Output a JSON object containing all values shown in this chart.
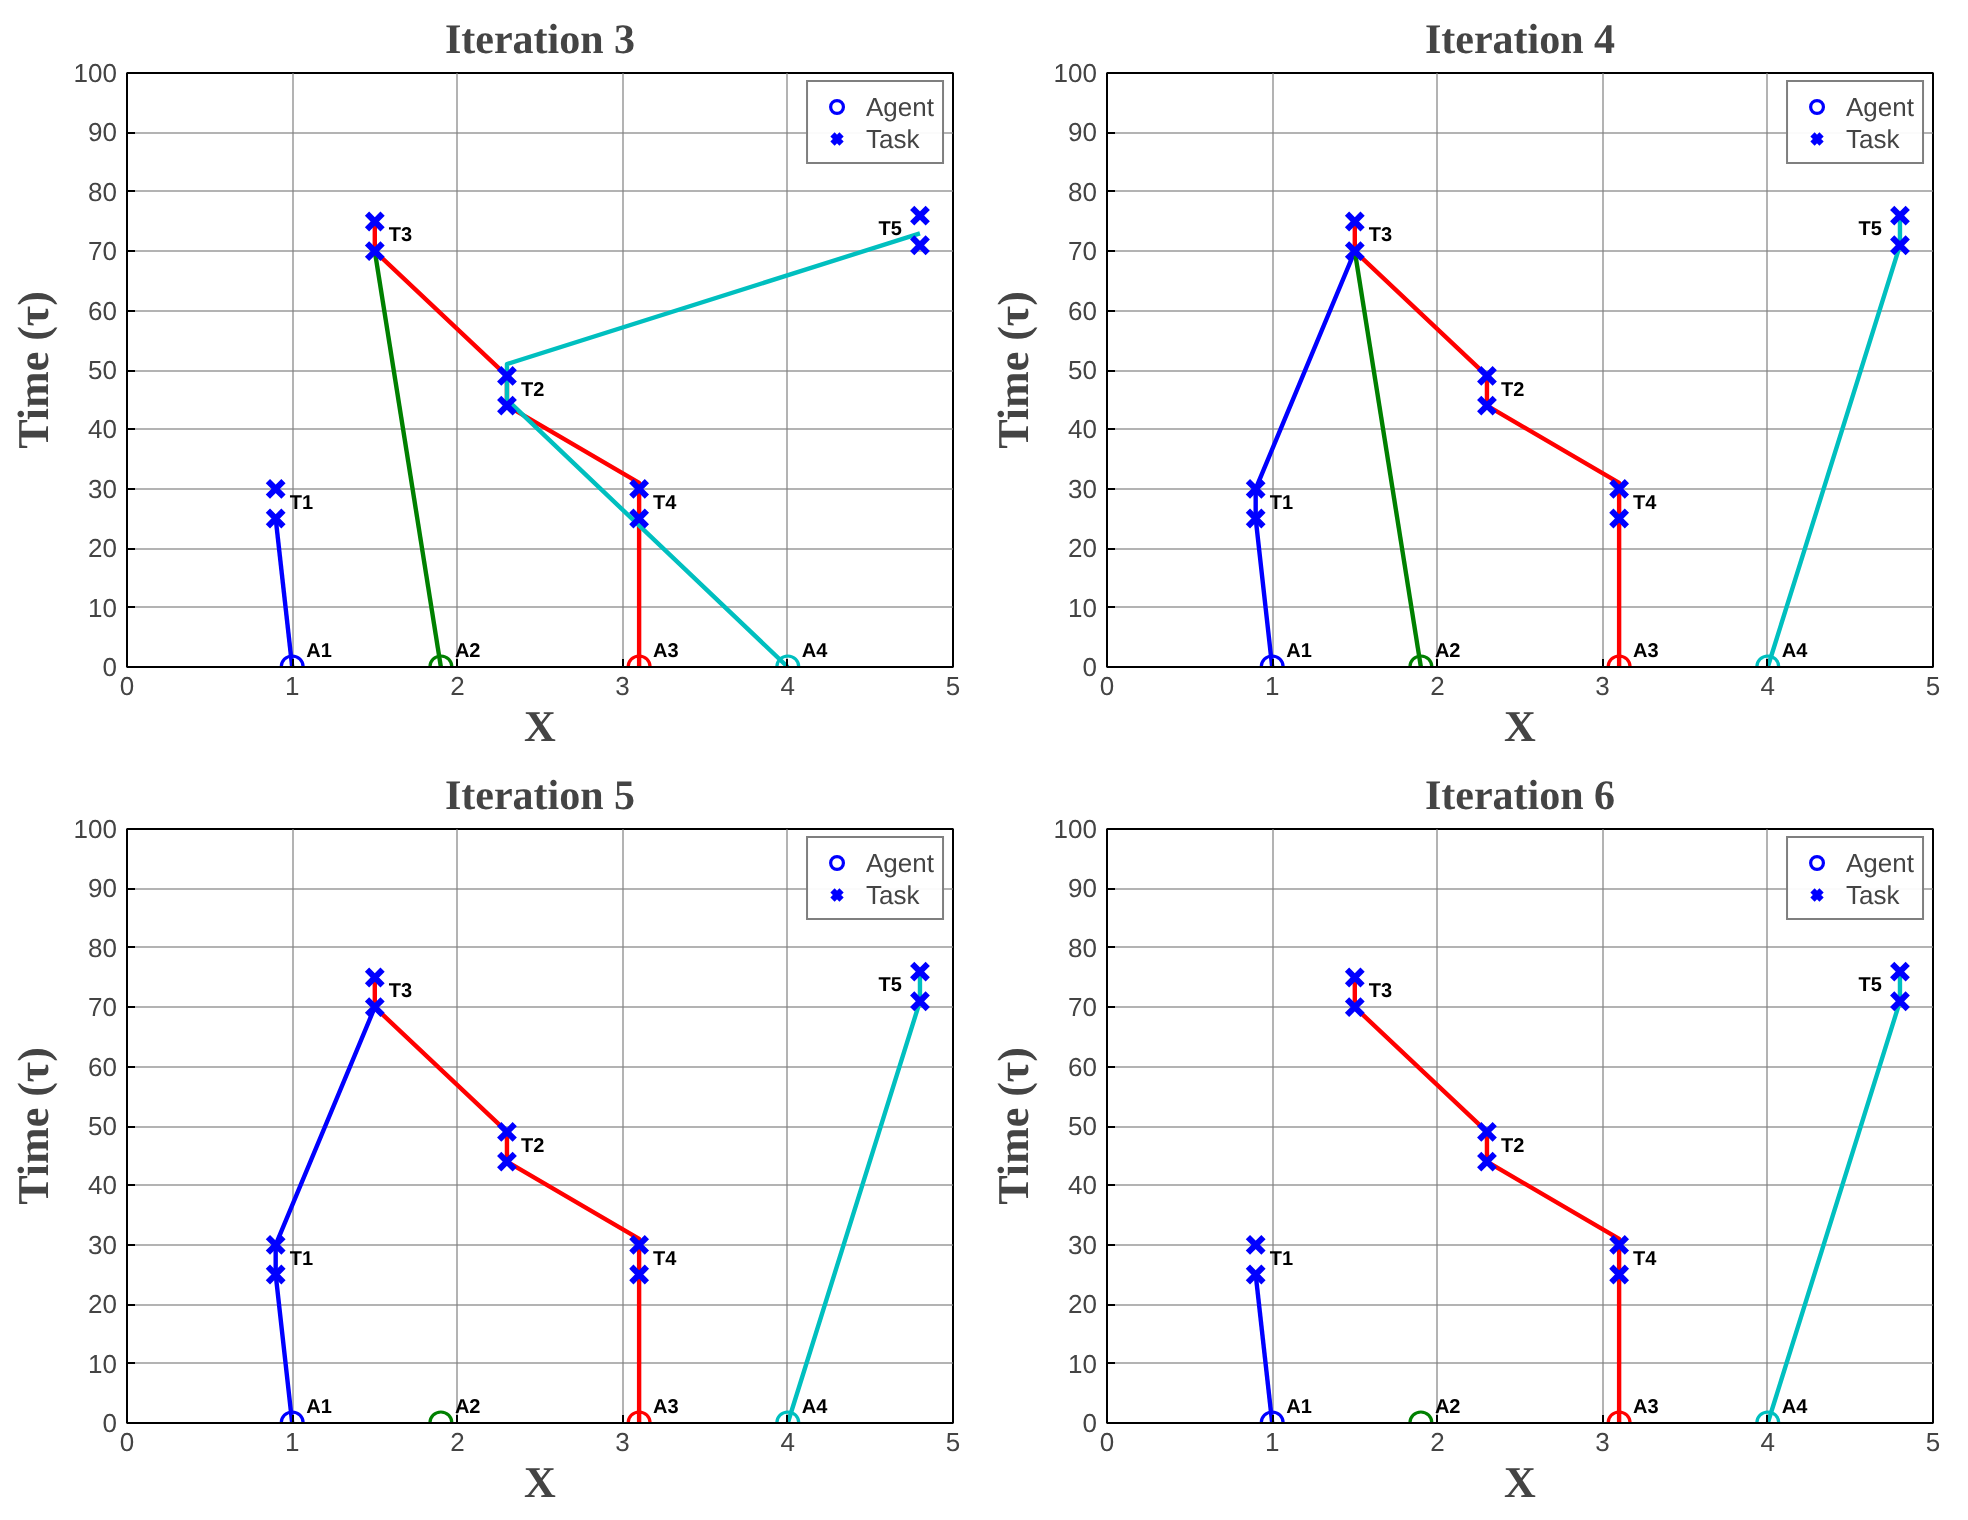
{
  "chart_data": [
    {
      "type": "line",
      "title": "Iteration 3",
      "xlabel": "X",
      "ylabel": "Time (τ)",
      "xlim": [
        0,
        5
      ],
      "ylim": [
        0,
        100
      ],
      "xticks": [
        0,
        1,
        2,
        3,
        4,
        5
      ],
      "yticks": [
        0,
        10,
        20,
        30,
        40,
        50,
        60,
        70,
        80,
        90,
        100
      ],
      "grid": true,
      "legend": "top right",
      "series": [
        {
          "color": "#0000ff",
          "x": [
            1,
            0.9
          ],
          "values": [
            0,
            25
          ]
        },
        {
          "color": "#008000",
          "x": [
            1.9,
            1.5
          ],
          "values": [
            0,
            70
          ]
        },
        {
          "color": "#ff0000",
          "x": [
            3.1,
            3.1,
            3.1,
            2.3,
            2.3,
            1.5,
            1.5
          ],
          "values": [
            0,
            25,
            31,
            44,
            49,
            70,
            75
          ]
        },
        {
          "color": "#00bfbf",
          "x": [
            4,
            2.3,
            2.3,
            4.8
          ],
          "values": [
            0,
            45,
            51,
            73
          ]
        },
        {
          "type": "scatter",
          "name": "Agent",
          "marker": "circle",
          "colors": [
            "#0000ff",
            "#008000",
            "#ff0000",
            "#00bfbf"
          ],
          "x": [
            1,
            1.9,
            3.1,
            4
          ],
          "values": [
            0,
            0,
            0,
            0
          ]
        },
        {
          "type": "scatter",
          "name": "Task",
          "marker": "cross",
          "color": "#0000ff",
          "x": [
            0.9,
            0.9,
            2.3,
            2.3,
            1.5,
            1.5,
            3.1,
            3.1,
            4.8,
            4.8
          ],
          "values": [
            25,
            30,
            44,
            49,
            70,
            75,
            25,
            30,
            71,
            76
          ]
        }
      ],
      "annotations": [
        {
          "text": "A1",
          "x": 1,
          "y": 0
        },
        {
          "text": "A2",
          "x": 1.9,
          "y": 0
        },
        {
          "text": "A3",
          "x": 3.1,
          "y": 0
        },
        {
          "text": "A4",
          "x": 4,
          "y": 0
        },
        {
          "text": "T1",
          "x": 0.9,
          "y": 25
        },
        {
          "text": "T2",
          "x": 2.3,
          "y": 44
        },
        {
          "text": "T3",
          "x": 1.5,
          "y": 70
        },
        {
          "text": "T4",
          "x": 3.1,
          "y": 25
        },
        {
          "text": "T5",
          "x": 4.8,
          "y": 71
        }
      ]
    },
    {
      "type": "line",
      "title": "Iteration 4",
      "xlabel": "X",
      "ylabel": "Time (τ)",
      "xlim": [
        0,
        5
      ],
      "ylim": [
        0,
        100
      ],
      "xticks": [
        0,
        1,
        2,
        3,
        4,
        5
      ],
      "yticks": [
        0,
        10,
        20,
        30,
        40,
        50,
        60,
        70,
        80,
        90,
        100
      ],
      "grid": true,
      "legend": "top right",
      "series": [
        {
          "color": "#0000ff",
          "x": [
            1,
            0.9,
            0.9,
            1.5
          ],
          "values": [
            0,
            25,
            30,
            70
          ]
        },
        {
          "color": "#008000",
          "x": [
            1.9,
            1.5
          ],
          "values": [
            0,
            70
          ]
        },
        {
          "color": "#ff0000",
          "x": [
            3.1,
            3.1,
            3.1,
            2.3,
            2.3,
            1.5,
            1.5
          ],
          "values": [
            0,
            25,
            31,
            44,
            49,
            70,
            75
          ]
        },
        {
          "color": "#00bfbf",
          "x": [
            4,
            4.8,
            4.8
          ],
          "values": [
            0,
            71,
            76
          ]
        },
        {
          "type": "scatter",
          "name": "Agent",
          "marker": "circle",
          "colors": [
            "#0000ff",
            "#008000",
            "#ff0000",
            "#00bfbf"
          ],
          "x": [
            1,
            1.9,
            3.1,
            4
          ],
          "values": [
            0,
            0,
            0,
            0
          ]
        },
        {
          "type": "scatter",
          "name": "Task",
          "marker": "cross",
          "color": "#0000ff",
          "x": [
            0.9,
            0.9,
            2.3,
            2.3,
            1.5,
            1.5,
            3.1,
            3.1,
            4.8,
            4.8
          ],
          "values": [
            25,
            30,
            44,
            49,
            70,
            75,
            25,
            30,
            71,
            76
          ]
        }
      ],
      "annotations": [
        {
          "text": "A1",
          "x": 1,
          "y": 0
        },
        {
          "text": "A2",
          "x": 1.9,
          "y": 0
        },
        {
          "text": "A3",
          "x": 3.1,
          "y": 0
        },
        {
          "text": "A4",
          "x": 4,
          "y": 0
        },
        {
          "text": "T1",
          "x": 0.9,
          "y": 25
        },
        {
          "text": "T2",
          "x": 2.3,
          "y": 44
        },
        {
          "text": "T3",
          "x": 1.5,
          "y": 70
        },
        {
          "text": "T4",
          "x": 3.1,
          "y": 25
        },
        {
          "text": "T5",
          "x": 4.8,
          "y": 71
        }
      ]
    },
    {
      "type": "line",
      "title": "Iteration 5",
      "xlabel": "X",
      "ylabel": "Time (τ)",
      "xlim": [
        0,
        5
      ],
      "ylim": [
        0,
        100
      ],
      "xticks": [
        0,
        1,
        2,
        3,
        4,
        5
      ],
      "yticks": [
        0,
        10,
        20,
        30,
        40,
        50,
        60,
        70,
        80,
        90,
        100
      ],
      "grid": true,
      "legend": "top right",
      "series": [
        {
          "color": "#0000ff",
          "x": [
            1,
            0.9,
            0.9,
            1.5
          ],
          "values": [
            0,
            25,
            30,
            70
          ]
        },
        {
          "color": "#ff0000",
          "x": [
            3.1,
            3.1,
            3.1,
            2.3,
            2.3,
            1.5,
            1.5
          ],
          "values": [
            0,
            25,
            31,
            44,
            49,
            70,
            75
          ]
        },
        {
          "color": "#00bfbf",
          "x": [
            4,
            4.8,
            4.8
          ],
          "values": [
            0,
            71,
            76
          ]
        },
        {
          "type": "scatter",
          "name": "Agent",
          "marker": "circle",
          "colors": [
            "#0000ff",
            "#008000",
            "#ff0000",
            "#00bfbf"
          ],
          "x": [
            1,
            1.9,
            3.1,
            4
          ],
          "values": [
            0,
            0,
            0,
            0
          ]
        },
        {
          "type": "scatter",
          "name": "Task",
          "marker": "cross",
          "color": "#0000ff",
          "x": [
            0.9,
            0.9,
            2.3,
            2.3,
            1.5,
            1.5,
            3.1,
            3.1,
            4.8,
            4.8
          ],
          "values": [
            25,
            30,
            44,
            49,
            70,
            75,
            25,
            30,
            71,
            76
          ]
        }
      ],
      "annotations": [
        {
          "text": "A1",
          "x": 1,
          "y": 0
        },
        {
          "text": "A2",
          "x": 1.9,
          "y": 0
        },
        {
          "text": "A3",
          "x": 3.1,
          "y": 0
        },
        {
          "text": "A4",
          "x": 4,
          "y": 0
        },
        {
          "text": "T1",
          "x": 0.9,
          "y": 25
        },
        {
          "text": "T2",
          "x": 2.3,
          "y": 44
        },
        {
          "text": "T3",
          "x": 1.5,
          "y": 70
        },
        {
          "text": "T4",
          "x": 3.1,
          "y": 25
        },
        {
          "text": "T5",
          "x": 4.8,
          "y": 71
        }
      ]
    },
    {
      "type": "line",
      "title": "Iteration 6",
      "xlabel": "X",
      "ylabel": "Time (τ)",
      "xlim": [
        0,
        5
      ],
      "ylim": [
        0,
        100
      ],
      "xticks": [
        0,
        1,
        2,
        3,
        4,
        5
      ],
      "yticks": [
        0,
        10,
        20,
        30,
        40,
        50,
        60,
        70,
        80,
        90,
        100
      ],
      "grid": true,
      "legend": "top right",
      "series": [
        {
          "color": "#0000ff",
          "x": [
            1,
            0.9
          ],
          "values": [
            0,
            25
          ]
        },
        {
          "color": "#ff0000",
          "x": [
            3.1,
            3.1,
            3.1,
            2.3,
            2.3,
            1.5,
            1.5
          ],
          "values": [
            0,
            25,
            31,
            44,
            49,
            70,
            75
          ]
        },
        {
          "color": "#00bfbf",
          "x": [
            4,
            4.8,
            4.8
          ],
          "values": [
            0,
            71,
            76
          ]
        },
        {
          "type": "scatter",
          "name": "Agent",
          "marker": "circle",
          "colors": [
            "#0000ff",
            "#008000",
            "#ff0000",
            "#00bfbf"
          ],
          "x": [
            1,
            1.9,
            3.1,
            4
          ],
          "values": [
            0,
            0,
            0,
            0
          ]
        },
        {
          "type": "scatter",
          "name": "Task",
          "marker": "cross",
          "color": "#0000ff",
          "x": [
            0.9,
            0.9,
            2.3,
            2.3,
            1.5,
            1.5,
            3.1,
            3.1,
            4.8,
            4.8
          ],
          "values": [
            25,
            30,
            44,
            49,
            70,
            75,
            25,
            30,
            71,
            76
          ]
        }
      ],
      "annotations": [
        {
          "text": "A1",
          "x": 1,
          "y": 0
        },
        {
          "text": "A2",
          "x": 1.9,
          "y": 0
        },
        {
          "text": "A3",
          "x": 3.1,
          "y": 0
        },
        {
          "text": "A4",
          "x": 4,
          "y": 0
        },
        {
          "text": "T1",
          "x": 0.9,
          "y": 25
        },
        {
          "text": "T2",
          "x": 2.3,
          "y": 44
        },
        {
          "text": "T3",
          "x": 1.5,
          "y": 70
        },
        {
          "text": "T4",
          "x": 3.1,
          "y": 25
        },
        {
          "text": "T5",
          "x": 4.8,
          "y": 71
        }
      ]
    }
  ]
}
